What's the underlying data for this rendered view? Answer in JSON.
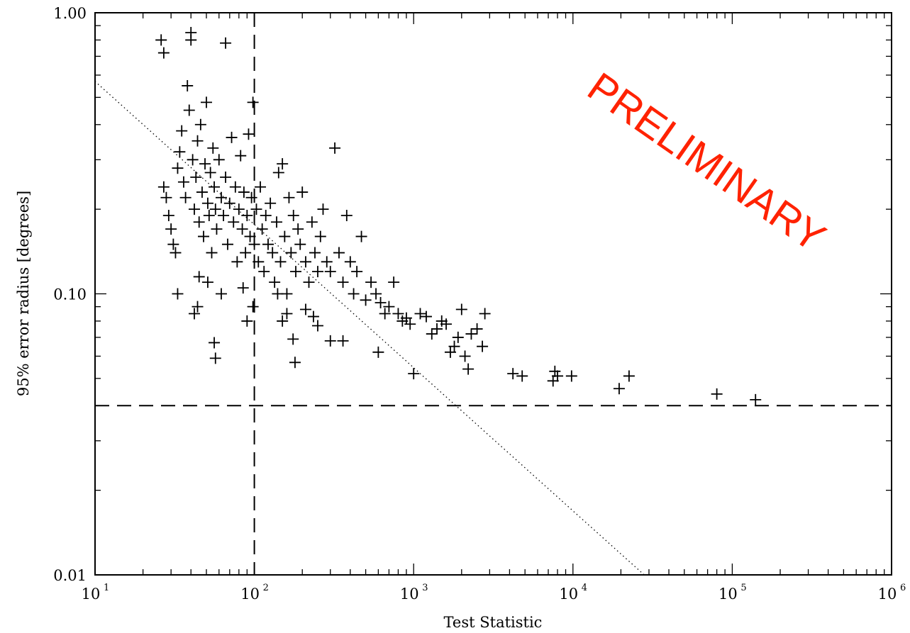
{
  "chart_data": {
    "type": "scatter",
    "title": "",
    "xlabel": "Test Statistic",
    "ylabel": "95% error radius [degrees]",
    "x_scale": "log",
    "y_scale": "log",
    "xlim": [
      10,
      1000000
    ],
    "ylim": [
      0.01,
      1.0
    ],
    "x_tick_labels": [
      {
        "value": 10,
        "base": "10",
        "exp": "1"
      },
      {
        "value": 100,
        "base": "10",
        "exp": "2"
      },
      {
        "value": 1000,
        "base": "10",
        "exp": "3"
      },
      {
        "value": 10000,
        "base": "10",
        "exp": "4"
      },
      {
        "value": 100000,
        "base": "10",
        "exp": "5"
      },
      {
        "value": 1000000,
        "base": "10",
        "exp": "6"
      }
    ],
    "y_tick_labels": [
      {
        "value": 1.0,
        "label": "1.00"
      },
      {
        "value": 0.1,
        "label": "0.10"
      },
      {
        "value": 0.01,
        "label": "0.01"
      }
    ],
    "reference_lines": {
      "vertical_x": 100,
      "horizontal_y": 0.04
    },
    "fit_line": {
      "x": [
        10,
        28000
      ],
      "y": [
        0.57,
        0.01
      ]
    },
    "annotation": "PRELIMINARY",
    "grid": false,
    "marker": "plus",
    "series": [
      {
        "points": [
          [
            26,
            0.8
          ],
          [
            27,
            0.72
          ],
          [
            40,
            0.85
          ],
          [
            40,
            0.8
          ],
          [
            66,
            0.78
          ],
          [
            27,
            0.24
          ],
          [
            28,
            0.22
          ],
          [
            29,
            0.19
          ],
          [
            30,
            0.17
          ],
          [
            31,
            0.15
          ],
          [
            32,
            0.14
          ],
          [
            33,
            0.28
          ],
          [
            34,
            0.32
          ],
          [
            35,
            0.38
          ],
          [
            36,
            0.25
          ],
          [
            37,
            0.22
          ],
          [
            38,
            0.55
          ],
          [
            39,
            0.45
          ],
          [
            41,
            0.3
          ],
          [
            42,
            0.2
          ],
          [
            43,
            0.26
          ],
          [
            44,
            0.35
          ],
          [
            45,
            0.18
          ],
          [
            46,
            0.4
          ],
          [
            47,
            0.23
          ],
          [
            48,
            0.16
          ],
          [
            49,
            0.29
          ],
          [
            50,
            0.48
          ],
          [
            51,
            0.21
          ],
          [
            52,
            0.19
          ],
          [
            53,
            0.27
          ],
          [
            54,
            0.14
          ],
          [
            55,
            0.33
          ],
          [
            56,
            0.24
          ],
          [
            57,
            0.2
          ],
          [
            58,
            0.17
          ],
          [
            60,
            0.3
          ],
          [
            62,
            0.22
          ],
          [
            64,
            0.19
          ],
          [
            66,
            0.26
          ],
          [
            68,
            0.15
          ],
          [
            70,
            0.21
          ],
          [
            72,
            0.36
          ],
          [
            74,
            0.18
          ],
          [
            76,
            0.24
          ],
          [
            78,
            0.13
          ],
          [
            80,
            0.2
          ],
          [
            82,
            0.31
          ],
          [
            84,
            0.17
          ],
          [
            86,
            0.23
          ],
          [
            88,
            0.14
          ],
          [
            90,
            0.19
          ],
          [
            92,
            0.37
          ],
          [
            94,
            0.16
          ],
          [
            96,
            0.22
          ],
          [
            98,
            0.48
          ],
          [
            100,
            0.15
          ],
          [
            103,
            0.2
          ],
          [
            106,
            0.13
          ],
          [
            109,
            0.24
          ],
          [
            112,
            0.17
          ],
          [
            115,
            0.12
          ],
          [
            118,
            0.19
          ],
          [
            122,
            0.15
          ],
          [
            126,
            0.21
          ],
          [
            130,
            0.14
          ],
          [
            134,
            0.11
          ],
          [
            138,
            0.18
          ],
          [
            142,
            0.27
          ],
          [
            146,
            0.13
          ],
          [
            150,
            0.29
          ],
          [
            155,
            0.16
          ],
          [
            160,
            0.1
          ],
          [
            165,
            0.22
          ],
          [
            170,
            0.14
          ],
          [
            176,
            0.19
          ],
          [
            182,
            0.12
          ],
          [
            188,
            0.17
          ],
          [
            194,
            0.15
          ],
          [
            200,
            0.23
          ],
          [
            210,
            0.13
          ],
          [
            220,
            0.11
          ],
          [
            230,
            0.18
          ],
          [
            240,
            0.14
          ],
          [
            250,
            0.12
          ],
          [
            260,
            0.16
          ],
          [
            270,
            0.2
          ],
          [
            285,
            0.13
          ],
          [
            300,
            0.12
          ],
          [
            320,
            0.33
          ],
          [
            340,
            0.14
          ],
          [
            360,
            0.11
          ],
          [
            380,
            0.19
          ],
          [
            400,
            0.13
          ],
          [
            420,
            0.1
          ],
          [
            440,
            0.12
          ],
          [
            470,
            0.16
          ],
          [
            500,
            0.095
          ],
          [
            540,
            0.11
          ],
          [
            580,
            0.1
          ],
          [
            620,
            0.093
          ],
          [
            660,
            0.085
          ],
          [
            700,
            0.09
          ],
          [
            750,
            0.11
          ],
          [
            800,
            0.085
          ],
          [
            850,
            0.08
          ],
          [
            900,
            0.082
          ],
          [
            950,
            0.078
          ],
          [
            1000,
            0.052
          ],
          [
            1100,
            0.085
          ],
          [
            1200,
            0.083
          ],
          [
            1300,
            0.072
          ],
          [
            1400,
            0.075
          ],
          [
            1500,
            0.08
          ],
          [
            1600,
            0.078
          ],
          [
            1700,
            0.062
          ],
          [
            1800,
            0.065
          ],
          [
            1900,
            0.07
          ],
          [
            2000,
            0.088
          ],
          [
            2100,
            0.06
          ],
          [
            2200,
            0.054
          ],
          [
            2300,
            0.072
          ],
          [
            2500,
            0.075
          ],
          [
            2700,
            0.065
          ],
          [
            2800,
            0.085
          ],
          [
            33,
            0.1
          ],
          [
            42,
            0.085
          ],
          [
            44,
            0.09
          ],
          [
            45,
            0.115
          ],
          [
            51,
            0.11
          ],
          [
            56,
            0.067
          ],
          [
            57,
            0.059
          ],
          [
            62,
            0.1
          ],
          [
            85,
            0.105
          ],
          [
            90,
            0.08
          ],
          [
            98,
            0.09
          ],
          [
            140,
            0.1
          ],
          [
            150,
            0.08
          ],
          [
            160,
            0.085
          ],
          [
            175,
            0.069
          ],
          [
            180,
            0.057
          ],
          [
            210,
            0.088
          ],
          [
            235,
            0.083
          ],
          [
            250,
            0.077
          ],
          [
            300,
            0.068
          ],
          [
            360,
            0.068
          ],
          [
            600,
            0.062
          ],
          [
            4200,
            0.052
          ],
          [
            4800,
            0.051
          ],
          [
            7500,
            0.049
          ],
          [
            7700,
            0.053
          ],
          [
            8000,
            0.051
          ],
          [
            9800,
            0.051
          ],
          [
            19500,
            0.046
          ],
          [
            22500,
            0.051
          ],
          [
            80000,
            0.044
          ],
          [
            140000,
            0.042
          ]
        ]
      }
    ]
  }
}
